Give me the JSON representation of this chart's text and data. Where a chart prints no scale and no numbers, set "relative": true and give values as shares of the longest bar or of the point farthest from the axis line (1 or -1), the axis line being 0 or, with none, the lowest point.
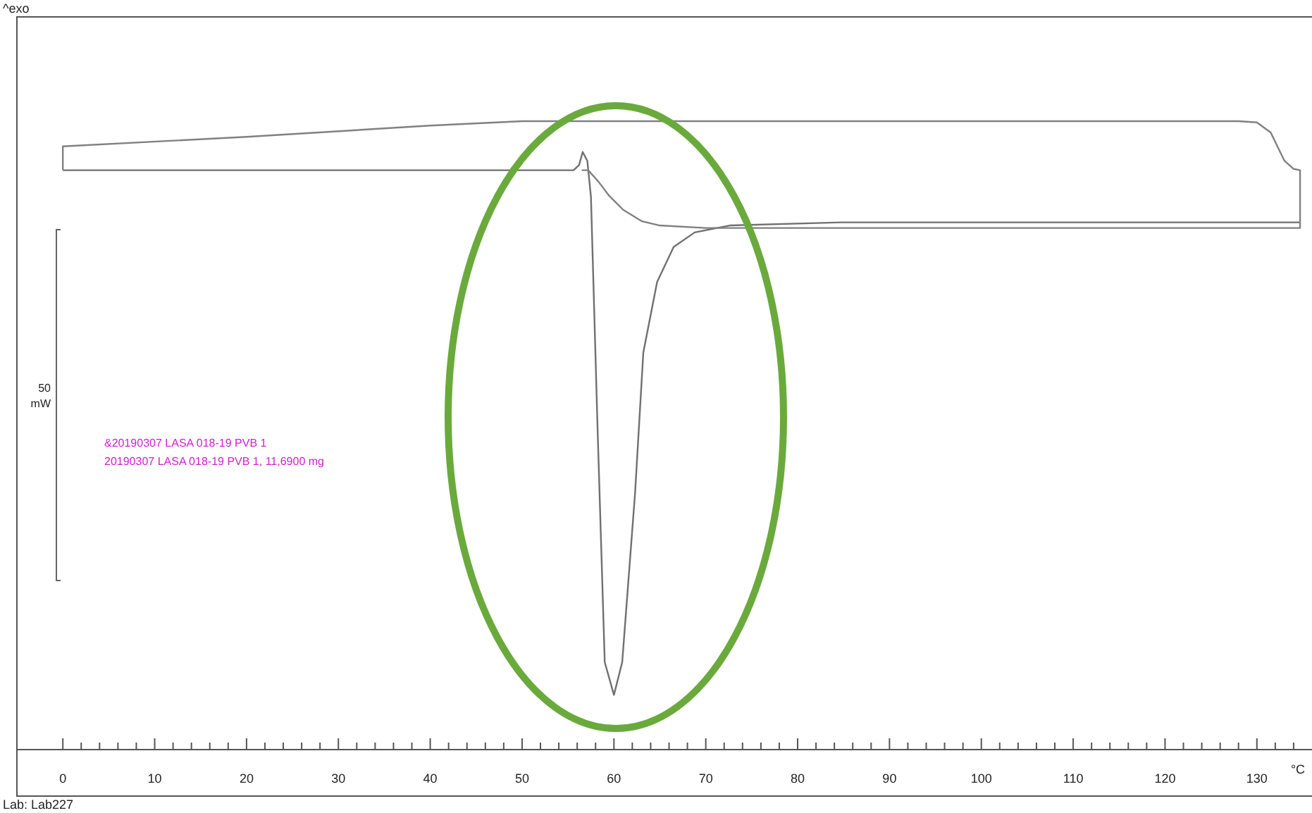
{
  "chart_data": {
    "type": "line",
    "relative": true,
    "xlabel": "°C",
    "xlim": [
      -5,
      136
    ],
    "xticks": [
      0,
      {
        "value": 2,
        "label": null
      },
      {
        "value": 4,
        "label": null
      },
      {
        "value": 6,
        "label": null
      },
      {
        "value": 8,
        "label": null
      },
      10,
      {
        "value": 12,
        "label": null
      },
      {
        "value": 14,
        "label": null
      },
      {
        "value": 16,
        "label": null
      },
      {
        "value": 18,
        "label": null
      },
      20,
      {
        "value": 22,
        "label": null
      },
      {
        "value": 24,
        "label": null
      },
      {
        "value": 26,
        "label": null
      },
      {
        "value": 28,
        "label": null
      },
      30,
      {
        "value": 32,
        "label": null
      },
      {
        "value": 34,
        "label": null
      },
      {
        "value": 36,
        "label": null
      },
      {
        "value": 38,
        "label": null
      },
      40,
      {
        "value": 42,
        "label": null
      },
      {
        "value": 44,
        "label": null
      },
      {
        "value": 46,
        "label": null
      },
      {
        "value": 48,
        "label": null
      },
      50,
      {
        "value": 52,
        "label": null
      },
      {
        "value": 54,
        "label": null
      },
      {
        "value": 56,
        "label": null
      },
      {
        "value": 58,
        "label": null
      },
      60,
      {
        "value": 62,
        "label": null
      },
      {
        "value": 64,
        "label": null
      },
      {
        "value": 66,
        "label": null
      },
      {
        "value": 68,
        "label": null
      },
      70,
      {
        "value": 72,
        "label": null
      },
      {
        "value": 74,
        "label": null
      },
      {
        "value": 76,
        "label": null
      },
      {
        "value": 78,
        "label": null
      },
      80,
      {
        "value": 82,
        "label": null
      },
      {
        "value": 84,
        "label": null
      },
      {
        "value": 86,
        "label": null
      },
      {
        "value": 88,
        "label": null
      },
      90,
      {
        "value": 92,
        "label": null
      },
      {
        "value": 94,
        "label": null
      },
      {
        "value": 96,
        "label": null
      },
      {
        "value": 98,
        "label": null
      },
      100,
      {
        "value": 102,
        "label": null
      },
      {
        "value": 104,
        "label": null
      },
      {
        "value": 106,
        "label": null
      },
      {
        "value": 108,
        "label": null
      },
      110,
      {
        "value": 112,
        "label": null
      },
      {
        "value": 114,
        "label": null
      },
      {
        "value": 116,
        "label": null
      },
      {
        "value": 118,
        "label": null
      },
      120,
      {
        "value": 122,
        "label": null
      },
      {
        "value": 124,
        "label": null
      },
      {
        "value": 126,
        "label": null
      },
      {
        "value": 128,
        "label": null
      },
      130,
      {
        "value": 132,
        "label": null
      },
      {
        "value": 134,
        "label": null
      }
    ],
    "line_style": "solid",
    "marker": "none",
    "series": [
      {
        "color": "#707070",
        "x": [
          0,
          55.6,
          56.2,
          56.6,
          57.1,
          57.5,
          58.2,
          59.0,
          60.0,
          60.9,
          62.3,
          63.2,
          64.7,
          66.5,
          68.8,
          72.6,
          84.8,
          134.7
        ],
        "values": [
          0.922,
          0.922,
          0.93,
          0.951,
          0.937,
          0.879,
          0.52,
          0.139,
          0.087,
          0.139,
          0.408,
          0.632,
          0.744,
          0.8,
          0.823,
          0.834,
          0.839,
          0.839
        ]
      },
      {
        "color": "#808080",
        "x": [
          0,
          0,
          20,
          40,
          50,
          128,
          130,
          131.5,
          133,
          134,
          134.7,
          134.7,
          70,
          65,
          63,
          61,
          59.5,
          58.3,
          57.2,
          56.5
        ],
        "values": [
          0.922,
          0.96,
          0.975,
          0.993,
          1,
          1,
          0.998,
          0.982,
          0.937,
          0.924,
          0.922,
          0.83,
          0.83,
          0.834,
          0.841,
          0.859,
          0.881,
          0.904,
          0.922,
          0.922
        ]
      }
    ],
    "annotations": [
      "&20190307 LASA 018-19 PVB 1",
      "20190307 LASA 018-19 PVB 1, 11,6900 mg",
      "50 mW",
      "Lab: Lab227",
      "^exo"
    ]
  }
}
